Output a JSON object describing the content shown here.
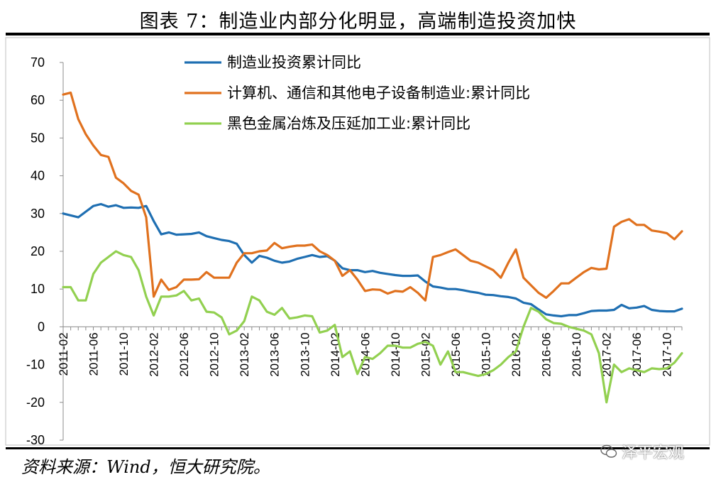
{
  "title": "图表 7：制造业内部分化明显，高端制造投资加快",
  "source": "资料来源：Wind，恒大研究院。",
  "watermark": "泽平宏观",
  "chart_data": {
    "type": "line",
    "ylim": [
      -30,
      70
    ],
    "yticks": [
      -30,
      -20,
      -10,
      0,
      10,
      20,
      30,
      40,
      50,
      60,
      70
    ],
    "xtick_labels": [
      "2011-02",
      "2011-06",
      "2011-10",
      "2012-02",
      "2012-06",
      "2012-10",
      "2013-02",
      "2013-06",
      "2013-10",
      "2014-02",
      "2014-06",
      "2014-10",
      "2015-02",
      "2015-06",
      "2015-10",
      "2016-02",
      "2016-06",
      "2016-10",
      "2017-02",
      "2017-06",
      "2017-10"
    ],
    "x_start": "2011-02",
    "x_end": "2017-12",
    "legend_position": "top-center",
    "grid": false,
    "series": [
      {
        "name": "制造业投资累计同比",
        "color": "#1f6fb2",
        "points": [
          [
            "2011-02",
            30
          ],
          [
            "2011-04",
            29
          ],
          [
            "2011-06",
            32
          ],
          [
            "2011-07",
            32.5
          ],
          [
            "2011-08",
            31.8
          ],
          [
            "2011-09",
            32.2
          ],
          [
            "2011-10",
            31.5
          ],
          [
            "2011-11",
            31.6
          ],
          [
            "2011-12",
            31.5
          ],
          [
            "2012-01",
            32
          ],
          [
            "2012-02",
            28
          ],
          [
            "2012-03",
            24.5
          ],
          [
            "2012-04",
            25
          ],
          [
            "2012-05",
            24.4
          ],
          [
            "2012-06",
            24.5
          ],
          [
            "2012-07",
            24.6
          ],
          [
            "2012-08",
            25
          ],
          [
            "2012-09",
            24
          ],
          [
            "2012-10",
            23.5
          ],
          [
            "2012-11",
            23
          ],
          [
            "2012-12",
            22.7
          ],
          [
            "2013-01",
            22
          ],
          [
            "2013-02",
            19
          ],
          [
            "2013-03",
            17
          ],
          [
            "2013-04",
            18.8
          ],
          [
            "2013-05",
            18.3
          ],
          [
            "2013-06",
            17.5
          ],
          [
            "2013-07",
            17
          ],
          [
            "2013-08",
            17.3
          ],
          [
            "2013-09",
            18
          ],
          [
            "2013-10",
            18.5
          ],
          [
            "2013-11",
            19
          ],
          [
            "2013-12",
            18.5
          ],
          [
            "2014-01",
            18.7
          ],
          [
            "2014-02",
            17.5
          ],
          [
            "2014-03",
            15.5
          ],
          [
            "2014-04",
            15
          ],
          [
            "2014-05",
            15
          ],
          [
            "2014-06",
            14.5
          ],
          [
            "2014-07",
            14.8
          ],
          [
            "2014-08",
            14.3
          ],
          [
            "2014-09",
            14
          ],
          [
            "2014-10",
            13.7
          ],
          [
            "2014-11",
            13.5
          ],
          [
            "2014-12",
            13.5
          ],
          [
            "2015-01",
            13.6
          ],
          [
            "2015-02",
            12
          ],
          [
            "2015-03",
            10.7
          ],
          [
            "2015-04",
            10.4
          ],
          [
            "2015-05",
            10
          ],
          [
            "2015-06",
            10
          ],
          [
            "2015-07",
            9.7
          ],
          [
            "2015-08",
            9.3
          ],
          [
            "2015-09",
            9
          ],
          [
            "2015-10",
            8.5
          ],
          [
            "2015-11",
            8.4
          ],
          [
            "2015-12",
            8.1
          ],
          [
            "2016-01",
            7.9
          ],
          [
            "2016-02",
            7.5
          ],
          [
            "2016-03",
            6.4
          ],
          [
            "2016-04",
            6
          ],
          [
            "2016-05",
            4.6
          ],
          [
            "2016-06",
            3.3
          ],
          [
            "2016-07",
            3
          ],
          [
            "2016-08",
            2.8
          ],
          [
            "2016-09",
            3.1
          ],
          [
            "2016-10",
            3.1
          ],
          [
            "2016-11",
            3.6
          ],
          [
            "2016-12",
            4.2
          ],
          [
            "2017-01",
            4.3
          ],
          [
            "2017-02",
            4.3
          ],
          [
            "2017-03",
            4.5
          ],
          [
            "2017-04",
            5.8
          ],
          [
            "2017-05",
            4.9
          ],
          [
            "2017-06",
            5.1
          ],
          [
            "2017-07",
            5.5
          ],
          [
            "2017-08",
            4.5
          ],
          [
            "2017-09",
            4.2
          ],
          [
            "2017-10",
            4.1
          ],
          [
            "2017-11",
            4.1
          ],
          [
            "2017-12",
            4.8
          ]
        ]
      },
      {
        "name": "计算机、通信和其他电子设备制造业:累计同比",
        "color": "#e0711e",
        "points": [
          [
            "2011-02",
            61.5
          ],
          [
            "2011-03",
            62
          ],
          [
            "2011-04",
            55
          ],
          [
            "2011-05",
            51
          ],
          [
            "2011-06",
            48
          ],
          [
            "2011-07",
            45.5
          ],
          [
            "2011-08",
            45
          ],
          [
            "2011-09",
            39.5
          ],
          [
            "2011-10",
            38
          ],
          [
            "2011-11",
            36
          ],
          [
            "2011-12",
            35
          ],
          [
            "2012-01",
            29
          ],
          [
            "2012-02",
            8
          ],
          [
            "2012-03",
            12.5
          ],
          [
            "2012-04",
            9.8
          ],
          [
            "2012-05",
            10.5
          ],
          [
            "2012-06",
            12.5
          ],
          [
            "2012-07",
            12.5
          ],
          [
            "2012-08",
            12.6
          ],
          [
            "2012-09",
            14.5
          ],
          [
            "2012-10",
            13
          ],
          [
            "2012-11",
            13
          ],
          [
            "2012-12",
            13
          ],
          [
            "2013-01",
            17
          ],
          [
            "2013-02",
            19.5
          ],
          [
            "2013-03",
            19.5
          ],
          [
            "2013-04",
            20
          ],
          [
            "2013-05",
            20.2
          ],
          [
            "2013-06",
            22.2
          ],
          [
            "2013-07",
            20.8
          ],
          [
            "2013-08",
            21.2
          ],
          [
            "2013-09",
            21.5
          ],
          [
            "2013-10",
            21.5
          ],
          [
            "2013-11",
            21.8
          ],
          [
            "2013-12",
            20
          ],
          [
            "2014-01",
            19
          ],
          [
            "2014-02",
            17.5
          ],
          [
            "2014-03",
            13.5
          ],
          [
            "2014-04",
            15
          ],
          [
            "2014-05",
            12.5
          ],
          [
            "2014-06",
            9.5
          ],
          [
            "2014-07",
            9.9
          ],
          [
            "2014-08",
            9.8
          ],
          [
            "2014-09",
            8.8
          ],
          [
            "2014-10",
            9.5
          ],
          [
            "2014-11",
            9.3
          ],
          [
            "2014-12",
            10.5
          ],
          [
            "2015-01",
            9
          ],
          [
            "2015-02",
            7
          ],
          [
            "2015-03",
            18.5
          ],
          [
            "2015-04",
            19
          ],
          [
            "2015-05",
            19.8
          ],
          [
            "2015-06",
            20.5
          ],
          [
            "2015-07",
            19
          ],
          [
            "2015-08",
            17.5
          ],
          [
            "2015-09",
            17
          ],
          [
            "2015-10",
            16
          ],
          [
            "2015-11",
            15
          ],
          [
            "2015-12",
            13
          ],
          [
            "2016-01",
            17
          ],
          [
            "2016-02",
            20.5
          ],
          [
            "2016-03",
            13
          ],
          [
            "2016-04",
            11
          ],
          [
            "2016-05",
            9
          ],
          [
            "2016-06",
            7.7
          ],
          [
            "2016-07",
            9.5
          ],
          [
            "2016-08",
            11.5
          ],
          [
            "2016-09",
            11.5
          ],
          [
            "2016-10",
            13
          ],
          [
            "2016-11",
            14.5
          ],
          [
            "2016-12",
            15.6
          ],
          [
            "2017-01",
            15.2
          ],
          [
            "2017-02",
            15.4
          ],
          [
            "2017-03",
            26.5
          ],
          [
            "2017-04",
            27.8
          ],
          [
            "2017-05",
            28.5
          ],
          [
            "2017-06",
            27
          ],
          [
            "2017-07",
            27
          ],
          [
            "2017-08",
            25.5
          ],
          [
            "2017-09",
            25.2
          ],
          [
            "2017-10",
            24.8
          ],
          [
            "2017-11",
            23.2
          ],
          [
            "2017-12",
            25.3
          ]
        ]
      },
      {
        "name": "黑色金属冶炼及压延加工业:累计同比",
        "color": "#92d050",
        "points": [
          [
            "2011-02",
            10.5
          ],
          [
            "2011-03",
            10.5
          ],
          [
            "2011-04",
            7
          ],
          [
            "2011-05",
            7
          ],
          [
            "2011-06",
            14
          ],
          [
            "2011-07",
            17
          ],
          [
            "2011-08",
            18.5
          ],
          [
            "2011-09",
            20
          ],
          [
            "2011-10",
            19
          ],
          [
            "2011-11",
            18.5
          ],
          [
            "2011-12",
            15
          ],
          [
            "2012-01",
            8
          ],
          [
            "2012-02",
            3
          ],
          [
            "2012-03",
            8
          ],
          [
            "2012-04",
            8
          ],
          [
            "2012-05",
            8.3
          ],
          [
            "2012-06",
            9.5
          ],
          [
            "2012-07",
            7
          ],
          [
            "2012-08",
            7.5
          ],
          [
            "2012-09",
            4
          ],
          [
            "2012-10",
            3.8
          ],
          [
            "2012-11",
            2.5
          ],
          [
            "2012-12",
            -2
          ],
          [
            "2013-01",
            -1
          ],
          [
            "2013-02",
            1.5
          ],
          [
            "2013-03",
            8
          ],
          [
            "2013-04",
            7
          ],
          [
            "2013-05",
            4
          ],
          [
            "2013-06",
            3.2
          ],
          [
            "2013-07",
            5
          ],
          [
            "2013-08",
            2.2
          ],
          [
            "2013-09",
            2.5
          ],
          [
            "2013-10",
            3
          ],
          [
            "2013-11",
            2.8
          ],
          [
            "2013-12",
            -1.5
          ],
          [
            "2014-01",
            -1
          ],
          [
            "2014-02",
            0.5
          ],
          [
            "2014-03",
            -8
          ],
          [
            "2014-04",
            -6.5
          ],
          [
            "2014-05",
            -12.5
          ],
          [
            "2014-06",
            -8
          ],
          [
            "2014-07",
            -8.5
          ],
          [
            "2014-08",
            -7
          ],
          [
            "2014-09",
            -5
          ],
          [
            "2014-10",
            -5
          ],
          [
            "2014-11",
            -5.5
          ],
          [
            "2014-12",
            -5.5
          ],
          [
            "2015-01",
            -4.5
          ],
          [
            "2015-02",
            -4
          ],
          [
            "2015-03",
            -5
          ],
          [
            "2015-04",
            -10
          ],
          [
            "2015-05",
            -6.5
          ],
          [
            "2015-06",
            -12
          ],
          [
            "2015-07",
            -12
          ],
          [
            "2015-08",
            -12.5
          ],
          [
            "2015-09",
            -13
          ],
          [
            "2015-10",
            -12.5
          ],
          [
            "2015-11",
            -11.5
          ],
          [
            "2015-12",
            -10
          ],
          [
            "2016-01",
            -8
          ],
          [
            "2016-02",
            -6.5
          ],
          [
            "2016-03",
            0
          ],
          [
            "2016-04",
            5
          ],
          [
            "2016-05",
            4
          ],
          [
            "2016-06",
            2
          ],
          [
            "2016-07",
            1
          ],
          [
            "2016-08",
            0.8
          ],
          [
            "2016-09",
            0
          ],
          [
            "2016-10",
            -0.5
          ],
          [
            "2016-11",
            -1
          ],
          [
            "2016-12",
            -2
          ],
          [
            "2017-01",
            -7
          ],
          [
            "2017-02",
            -20
          ],
          [
            "2017-03",
            -10
          ],
          [
            "2017-04",
            -12
          ],
          [
            "2017-05",
            -11
          ],
          [
            "2017-06",
            -11.5
          ],
          [
            "2017-07",
            -12
          ],
          [
            "2017-08",
            -11
          ],
          [
            "2017-09",
            -11.2
          ],
          [
            "2017-10",
            -11
          ],
          [
            "2017-11",
            -9.5
          ],
          [
            "2017-12",
            -7
          ]
        ]
      }
    ]
  }
}
